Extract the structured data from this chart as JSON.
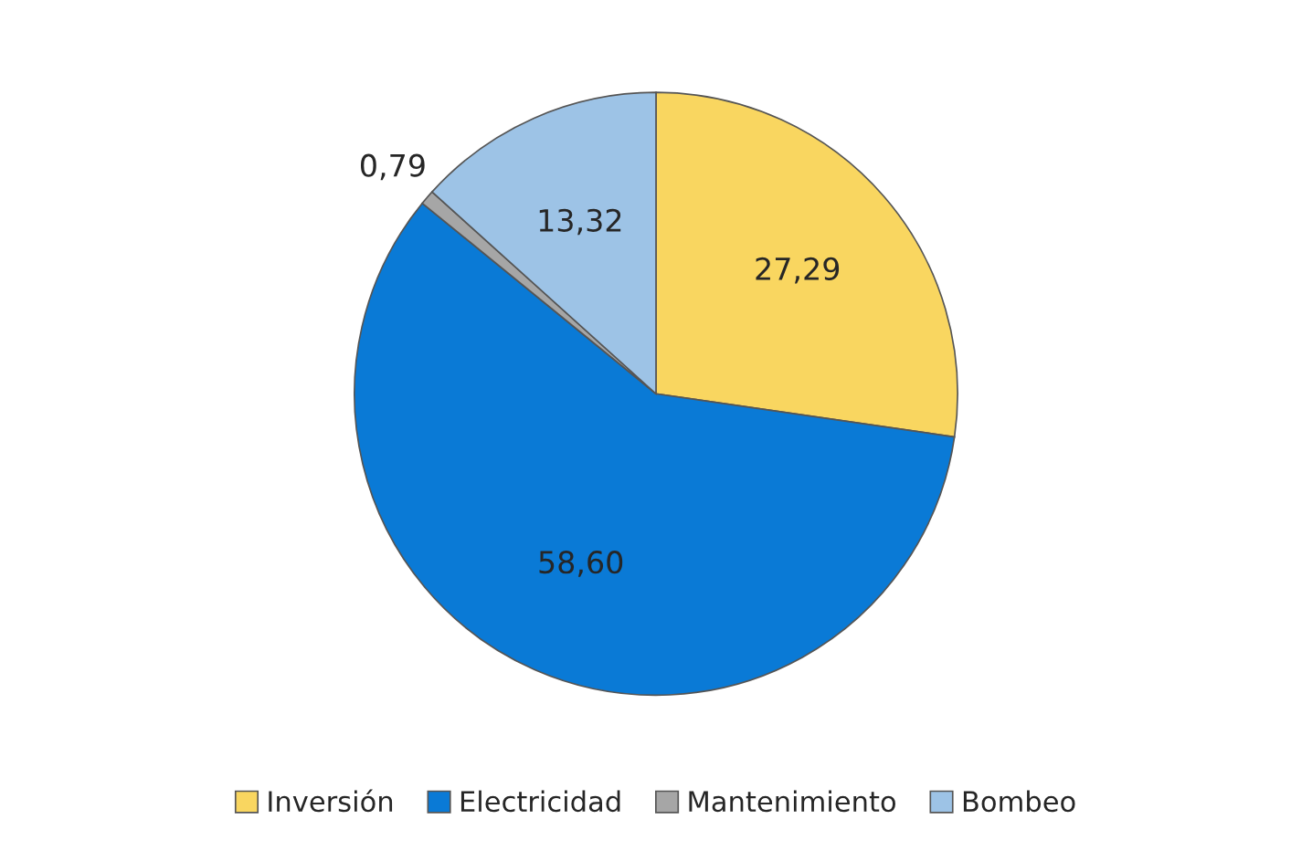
{
  "chart_data": {
    "type": "pie",
    "categories": [
      "Inversión",
      "Electricidad",
      "Mantenimiento",
      "Bombeo"
    ],
    "values": [
      27.29,
      58.6,
      0.79,
      13.32
    ],
    "colors": [
      "#f9d660",
      "#0a7ad6",
      "#a6a6a6",
      "#9dc3e6"
    ],
    "value_labels": [
      "27,29",
      "58,60",
      "0,79",
      "13,32"
    ],
    "legend": "bottom"
  }
}
